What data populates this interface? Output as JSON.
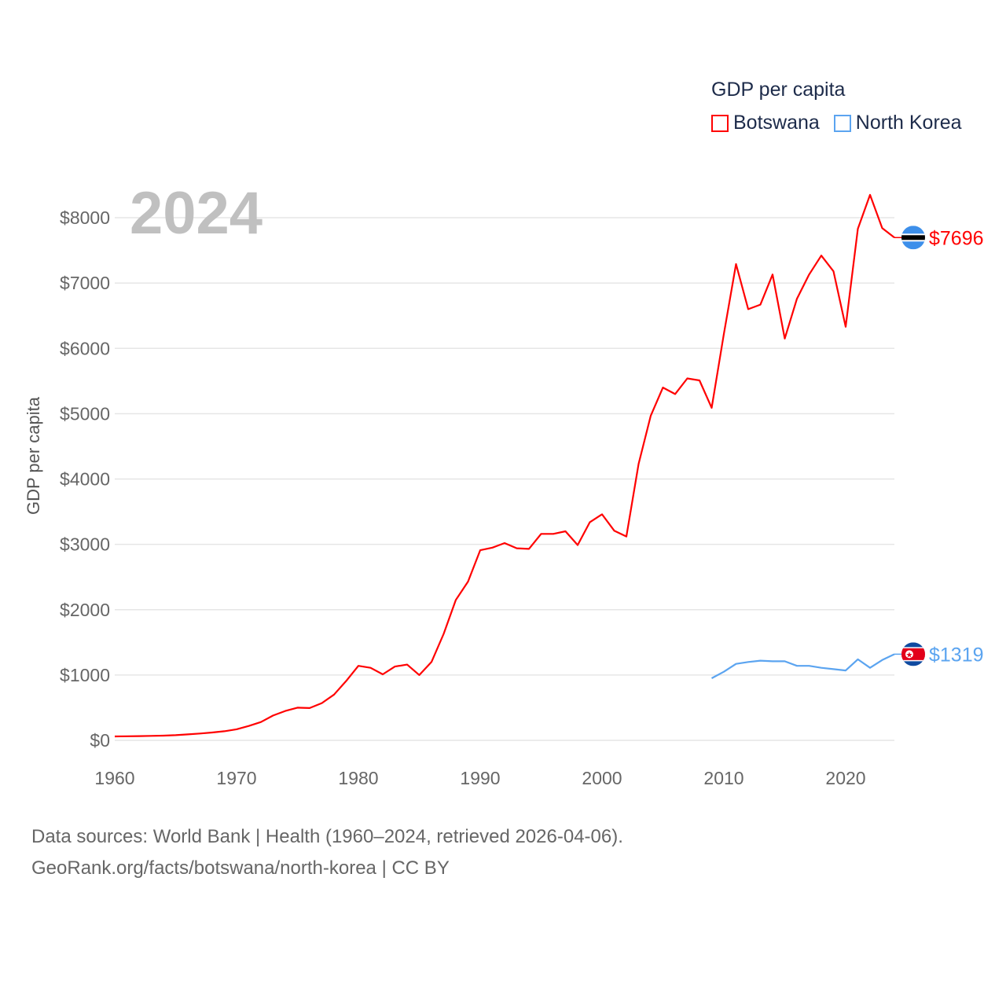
{
  "chart_data": {
    "type": "line",
    "title": "GDP per capita",
    "ylabel": "GDP per capita",
    "xlabel": "",
    "xlim": [
      1960,
      2024
    ],
    "ylim": [
      0,
      8000
    ],
    "x_ticks": [
      1960,
      1970,
      1980,
      1990,
      2000,
      2010,
      2020
    ],
    "y_ticks": [
      0,
      1000,
      2000,
      3000,
      4000,
      5000,
      6000,
      7000,
      8000
    ],
    "y_tick_labels": [
      "$0",
      "$1000",
      "$2000",
      "$3000",
      "$4000",
      "$5000",
      "$6000",
      "$7000",
      "$8000"
    ],
    "grid": true,
    "legend_position": "top-right",
    "current_year": "2024",
    "series": [
      {
        "name": "Botswana",
        "color": "#ff0000",
        "end_label": "$7696",
        "flag": "botswana-flag",
        "x_start": 1960,
        "values": [
          60,
          62,
          65,
          68,
          72,
          80,
          92,
          105,
          120,
          140,
          170,
          220,
          280,
          380,
          450,
          500,
          495,
          570,
          700,
          910,
          1140,
          1110,
          1010,
          1130,
          1160,
          1000,
          1200,
          1630,
          2150,
          2430,
          2910,
          2950,
          3020,
          2940,
          2930,
          3160,
          3160,
          3200,
          2990,
          3340,
          3460,
          3210,
          3120,
          4230,
          4970,
          5400,
          5300,
          5540,
          5510,
          5090,
          6220,
          7290,
          6600,
          6670,
          7130,
          6150,
          6760,
          7130,
          7420,
          7180,
          6330,
          7830,
          8350,
          7840,
          7696
        ]
      },
      {
        "name": "North Korea",
        "color": "#5ba4f0",
        "end_label": "$1319",
        "flag": "north-korea-flag",
        "x_start": 2009,
        "values": [
          950,
          1050,
          1170,
          1200,
          1220,
          1210,
          1210,
          1140,
          1140,
          1110,
          1090,
          1070,
          1240,
          1110,
          1230,
          1319
        ]
      }
    ]
  },
  "footer": {
    "line1": "Data sources: World Bank | Health (1960–2024, retrieved 2026-04-06).",
    "line2": "GeoRank.org/facts/botswana/north-korea | CC BY"
  }
}
